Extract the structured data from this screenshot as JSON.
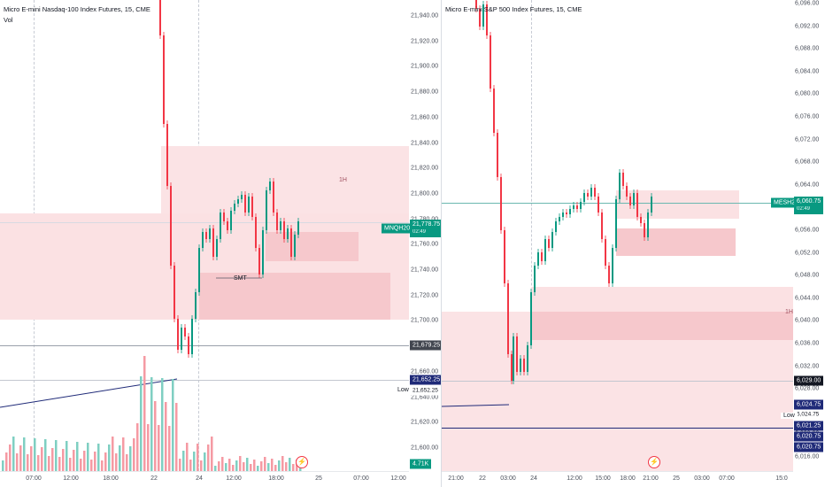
{
  "left": {
    "legend": {
      "title": "Micro E-mini Nasdaq-100 Index Futures, 15, CME",
      "vol": "Vol"
    },
    "y_ticks": [
      "21,940.00",
      "21,920.00",
      "21,900.00",
      "21,880.00",
      "21,860.00",
      "21,840.00",
      "21,820.00",
      "21,800.00",
      "21,780.00",
      "21,760.00",
      "21,740.00",
      "21,720.00",
      "21,700.00",
      "21,680.00",
      "21,660.00",
      "21,640.00",
      "21,620.00",
      "21,600.00"
    ],
    "x_ticks": [
      "07:00",
      "12:00",
      "18:00",
      "22",
      "24",
      "12:00",
      "18:00",
      "25",
      "07:00",
      "12:00"
    ],
    "price_tag": {
      "symbol": "MNQH2025",
      "price": "21,778.75",
      "countdown": "02:49"
    },
    "level_tags": [
      "21,679.25",
      "21,652.25"
    ],
    "low_label": "Low",
    "low_value": "21,652.25",
    "vol_tag": "4.71K",
    "annotations": {
      "smt": "SMT",
      "tf": "1H"
    },
    "replay_icon": "lightning-icon"
  },
  "right": {
    "legend": {
      "title": "Micro E-mini S&P 500 Index Futures, 15, CME"
    },
    "y_ticks": [
      "6,096.00",
      "6,092.00",
      "6,088.00",
      "6,084.00",
      "6,080.00",
      "6,076.00",
      "6,072.00",
      "6,068.00",
      "6,064.00",
      "6,060.00",
      "6,056.00",
      "6,052.00",
      "6,048.00",
      "6,044.00",
      "6,040.00",
      "6,036.00",
      "6,032.00",
      "6,028.00",
      "6,024.00",
      "6,020.00",
      "6,016.00"
    ],
    "x_ticks": [
      "21:00",
      "22",
      "03:00",
      "24",
      "12:00",
      "15:00",
      "18:00",
      "21:00",
      "25",
      "03:00",
      "07:00",
      "15:0"
    ],
    "price_tag": {
      "symbol": "MESH2025",
      "price": "6,060.75",
      "countdown": "02:49"
    },
    "level_tags": [
      "6,029.00",
      "6,024.75",
      "6,024.75",
      "6,021.25",
      "6,020.75",
      "6,020.75"
    ],
    "low_label": "Low",
    "annotations": {
      "tf": "1H"
    },
    "replay_icon": "lightning-icon"
  },
  "colors": {
    "up": "#089981",
    "down": "#f23645",
    "zone": "#f9d9dc",
    "zone_strong": "#f5c0c5",
    "navy": "#1f2a78"
  }
}
